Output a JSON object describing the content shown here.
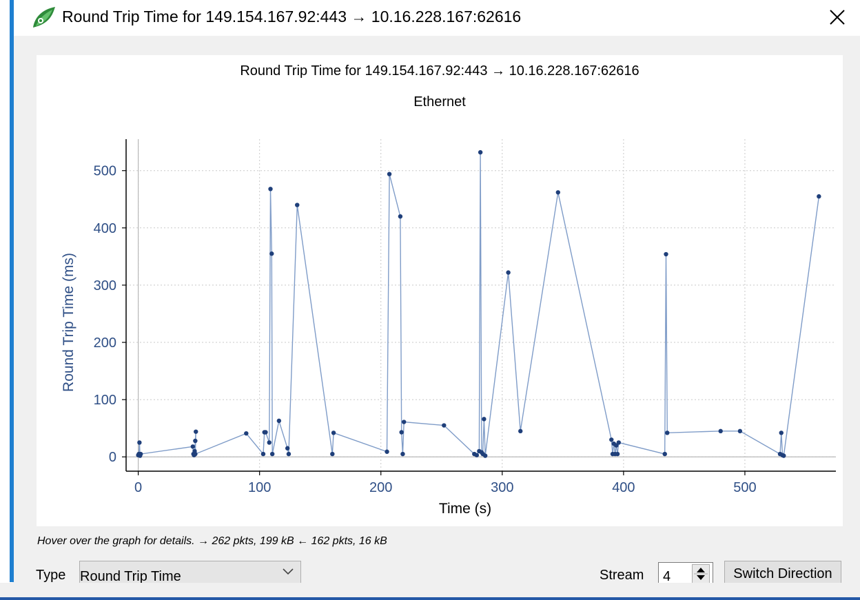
{
  "window": {
    "title": "Round Trip Time for 149.154.167.92:443 → 10.16.228.167:62616",
    "close_glyph": "✕",
    "app_icon": "wireshark-fin-icon"
  },
  "hint": "Hover over the graph for details. → 262 pkts, 199 kB ← 162 pkts, 16 kB",
  "controls": {
    "type_label": "Type",
    "type_value": "Round Trip Time",
    "stream_label": "Stream",
    "stream_value": "4",
    "switch_label": "Switch Direction"
  },
  "colors": {
    "series": "#1f3f7a",
    "line": "#7f9cc8",
    "axis_text": "#2f4f86",
    "grid": "#c8c8c8"
  },
  "chart_data": {
    "type": "line",
    "title": "Round Trip Time for 149.154.167.92:443 → 10.16.228.167:62616",
    "subtitle": "Ethernet",
    "xlabel": "Time (s)",
    "ylabel": "Round Trip Time (ms)",
    "xlim": [
      -10,
      575
    ],
    "ylim": [
      -25,
      555
    ],
    "xticks": [
      0,
      100,
      200,
      300,
      400,
      500
    ],
    "yticks": [
      0,
      100,
      200,
      300,
      400,
      500
    ],
    "grid": true,
    "x": [
      0,
      0.5,
      1,
      1.5,
      2,
      45,
      45.5,
      46,
      46.5,
      47,
      47.5,
      47,
      89,
      103,
      104,
      105,
      108,
      109,
      110,
      110.5,
      116,
      123,
      124,
      131,
      160,
      161,
      205,
      207,
      216,
      217,
      218,
      219,
      252,
      277,
      279,
      281,
      282,
      283,
      284,
      285,
      286,
      305,
      315,
      346,
      390,
      391,
      392,
      393,
      394,
      395,
      396,
      434,
      435,
      436,
      480,
      496,
      529,
      530,
      531,
      532,
      561
    ],
    "y": [
      3,
      5,
      25,
      2,
      5,
      18,
      5,
      3,
      10,
      28,
      44,
      5,
      41,
      5,
      43,
      43,
      25,
      468,
      355,
      5,
      63,
      15,
      5,
      440,
      5,
      42,
      9,
      494,
      420,
      43,
      5,
      61,
      55,
      5,
      3,
      10,
      532,
      8,
      5,
      66,
      2,
      322,
      45,
      462,
      30,
      5,
      23,
      5,
      20,
      5,
      25,
      5,
      354,
      42,
      45,
      45,
      5,
      42,
      3,
      2,
      455
    ]
  }
}
